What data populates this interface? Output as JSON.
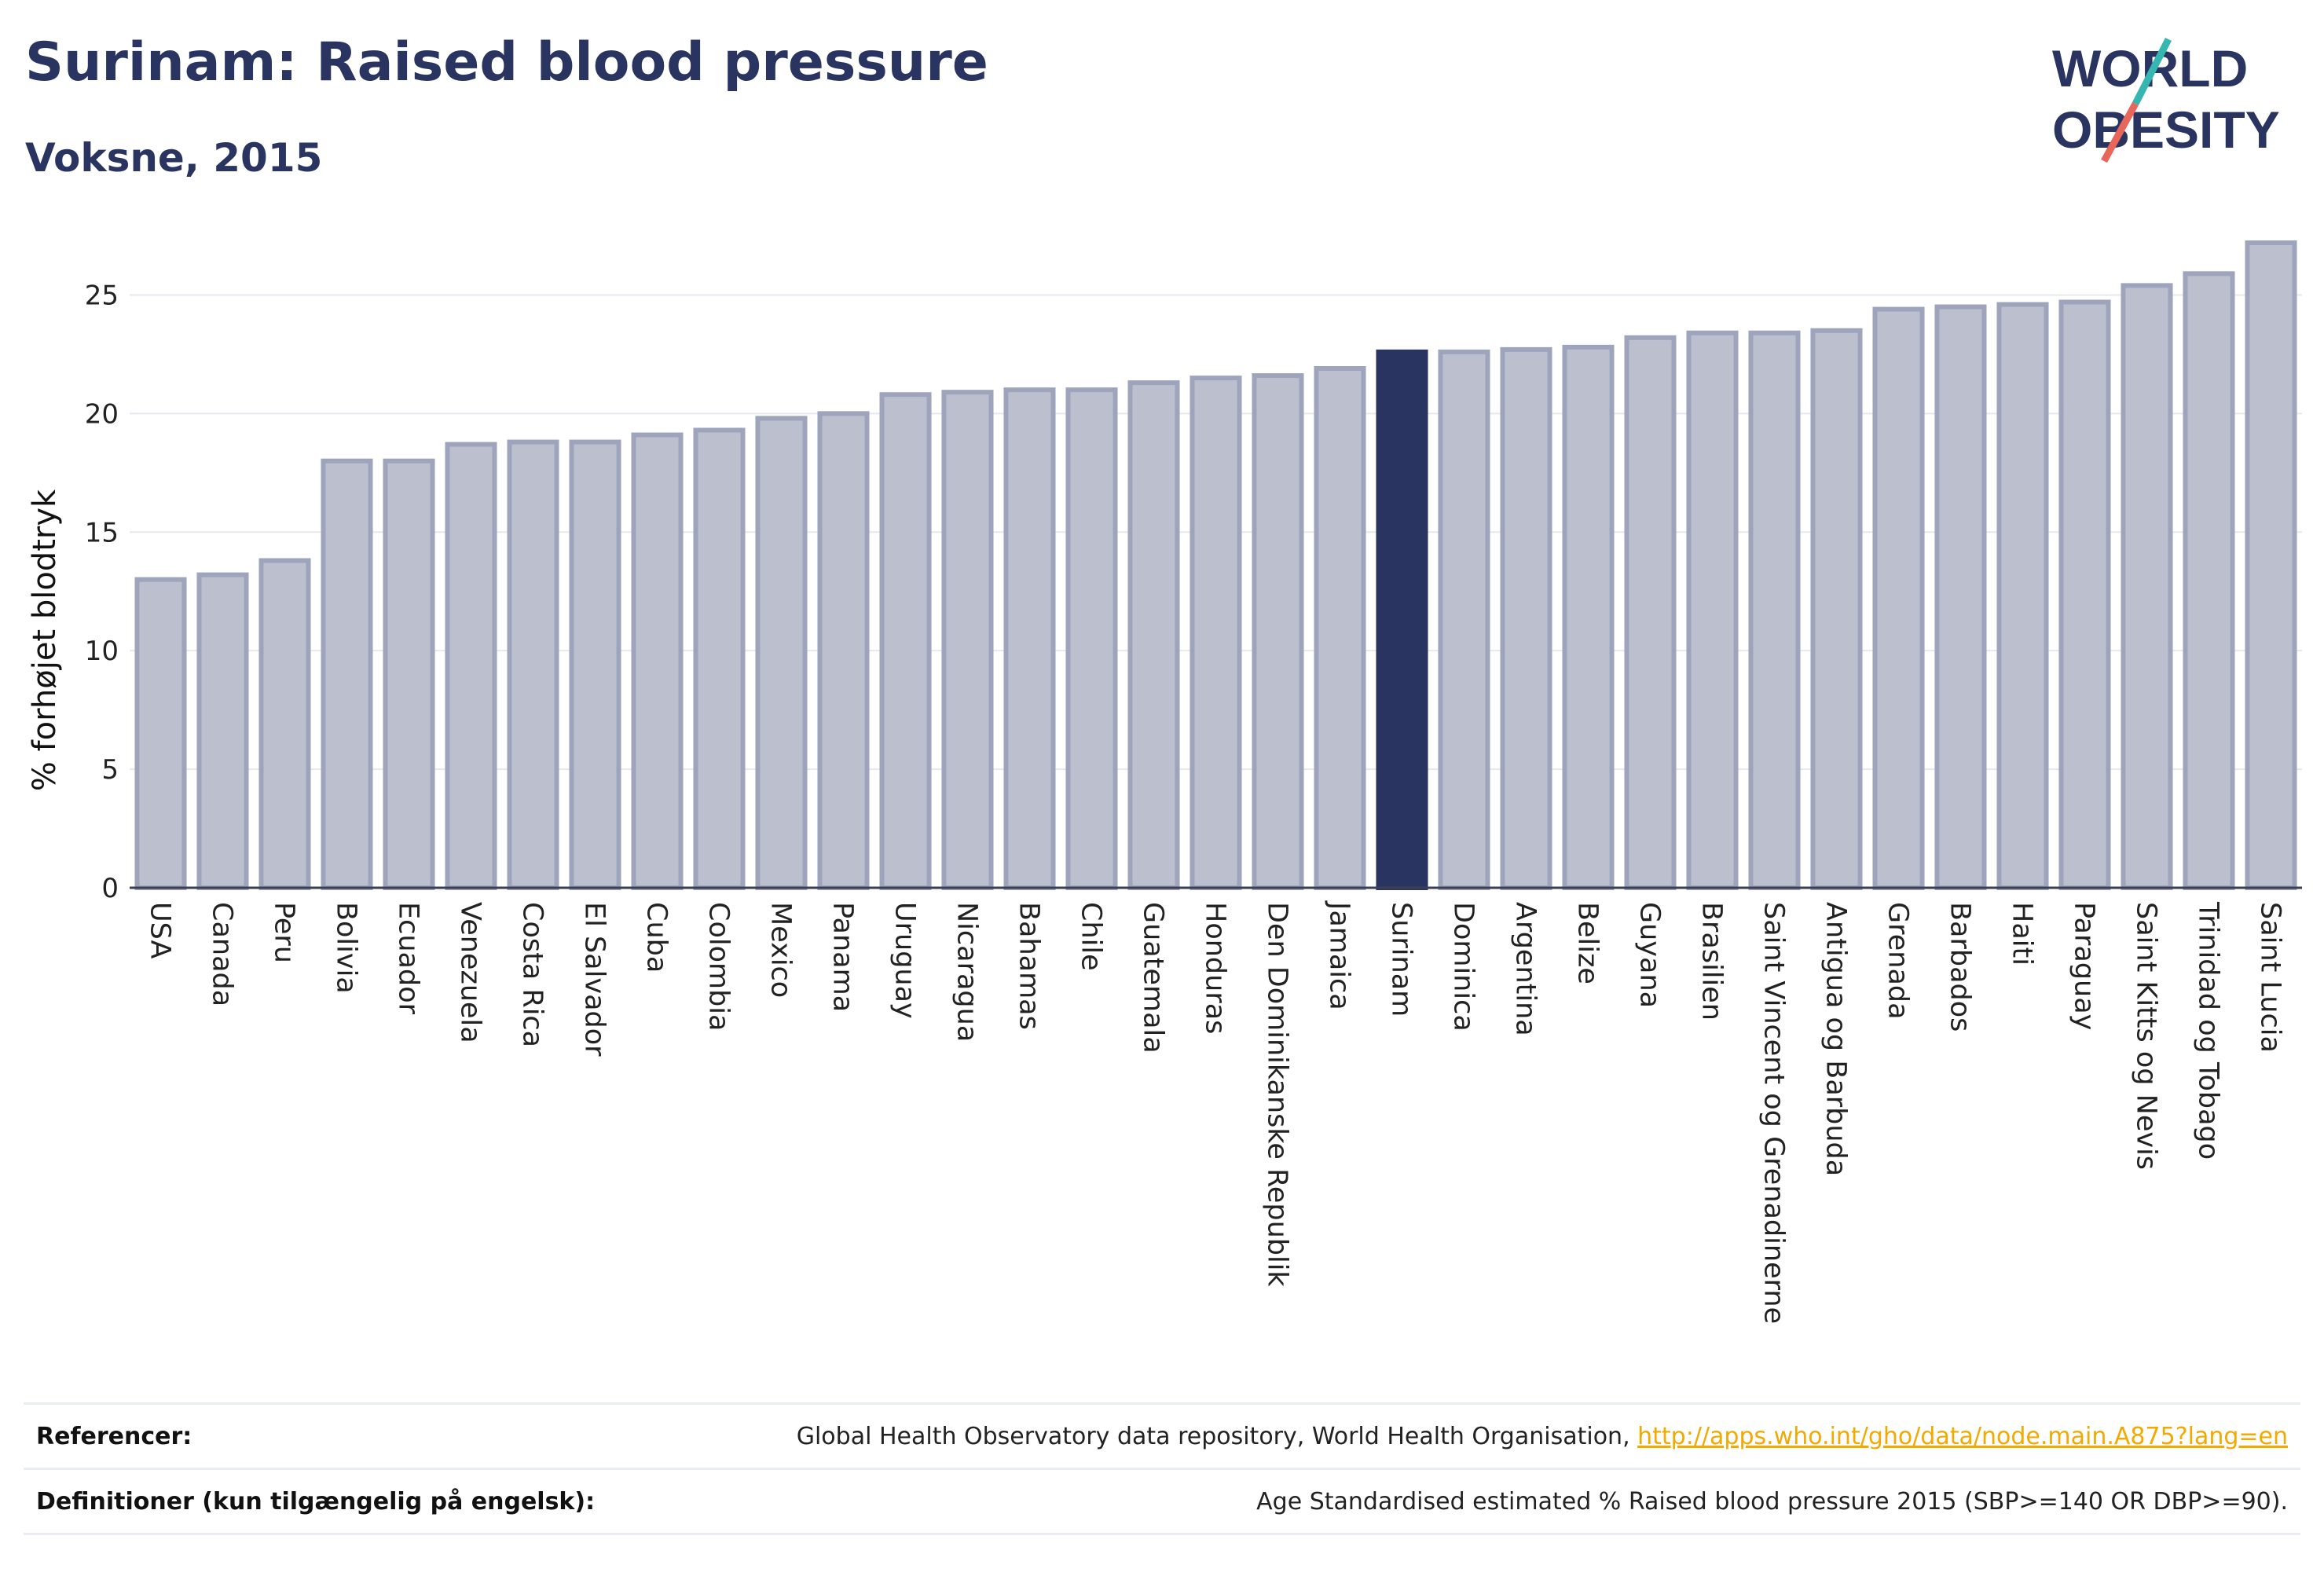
{
  "header": {
    "title": "Surinam: Raised blood pressure",
    "subtitle": "Voksne, 2015"
  },
  "logo": {
    "line1": "WORLD",
    "line2": "OBESITY"
  },
  "colors": {
    "accent": "#2a3461",
    "bar_fill": "#bcc0ce",
    "bar_stroke": "#9ea4bc",
    "grid": "#e6e8ef",
    "link": "#f2a900",
    "logo_slash_teal": "#36b6b0",
    "logo_slash_red": "#e8675a"
  },
  "chart_data": {
    "type": "bar",
    "title": "Surinam: Raised blood pressure",
    "subtitle": "Voksne, 2015",
    "xlabel": "",
    "ylabel": "% forhøjet blodtryk",
    "ylim": [
      0,
      27.5
    ],
    "yticks": [
      0,
      5,
      10,
      15,
      20,
      25
    ],
    "grid": true,
    "highlight": "Surinam",
    "categories": [
      "USA",
      "Canada",
      "Peru",
      "Bolivia",
      "Ecuador",
      "Venezuela",
      "Costa Rica",
      "El Salvador",
      "Cuba",
      "Colombia",
      "Mexico",
      "Panama",
      "Uruguay",
      "Nicaragua",
      "Bahamas",
      "Chile",
      "Guatemala",
      "Honduras",
      "Den Dominikanske Republik",
      "Jamaica",
      "Surinam",
      "Dominica",
      "Argentina",
      "Belize",
      "Guyana",
      "Brasilien",
      "Saint Vincent og Grenadinerne",
      "Antigua og Barbuda",
      "Grenada",
      "Barbados",
      "Haiti",
      "Paraguay",
      "Saint Kitts og Nevis",
      "Trinidad og Tobago",
      "Saint Lucia"
    ],
    "values": [
      13.0,
      13.2,
      13.8,
      18.0,
      18.0,
      18.7,
      18.8,
      18.8,
      19.1,
      19.3,
      19.8,
      20.0,
      20.8,
      20.9,
      21.0,
      21.0,
      21.3,
      21.5,
      21.6,
      21.9,
      22.6,
      22.6,
      22.7,
      22.8,
      23.2,
      23.4,
      23.4,
      23.5,
      24.4,
      24.5,
      24.6,
      24.7,
      25.4,
      25.9,
      27.2
    ]
  },
  "footer": {
    "references_label": "Referencer:",
    "references_text": "Global Health Observatory data repository, World Health Organisation, ",
    "references_link": "http://apps.who.int/gho/data/node.main.A875?lang=en",
    "definitions_label": "Definitioner (kun tilgængelig på engelsk):",
    "definitions_text": "Age Standardised estimated % Raised blood pressure 2015 (SBP>=140 OR DBP>=90)."
  }
}
